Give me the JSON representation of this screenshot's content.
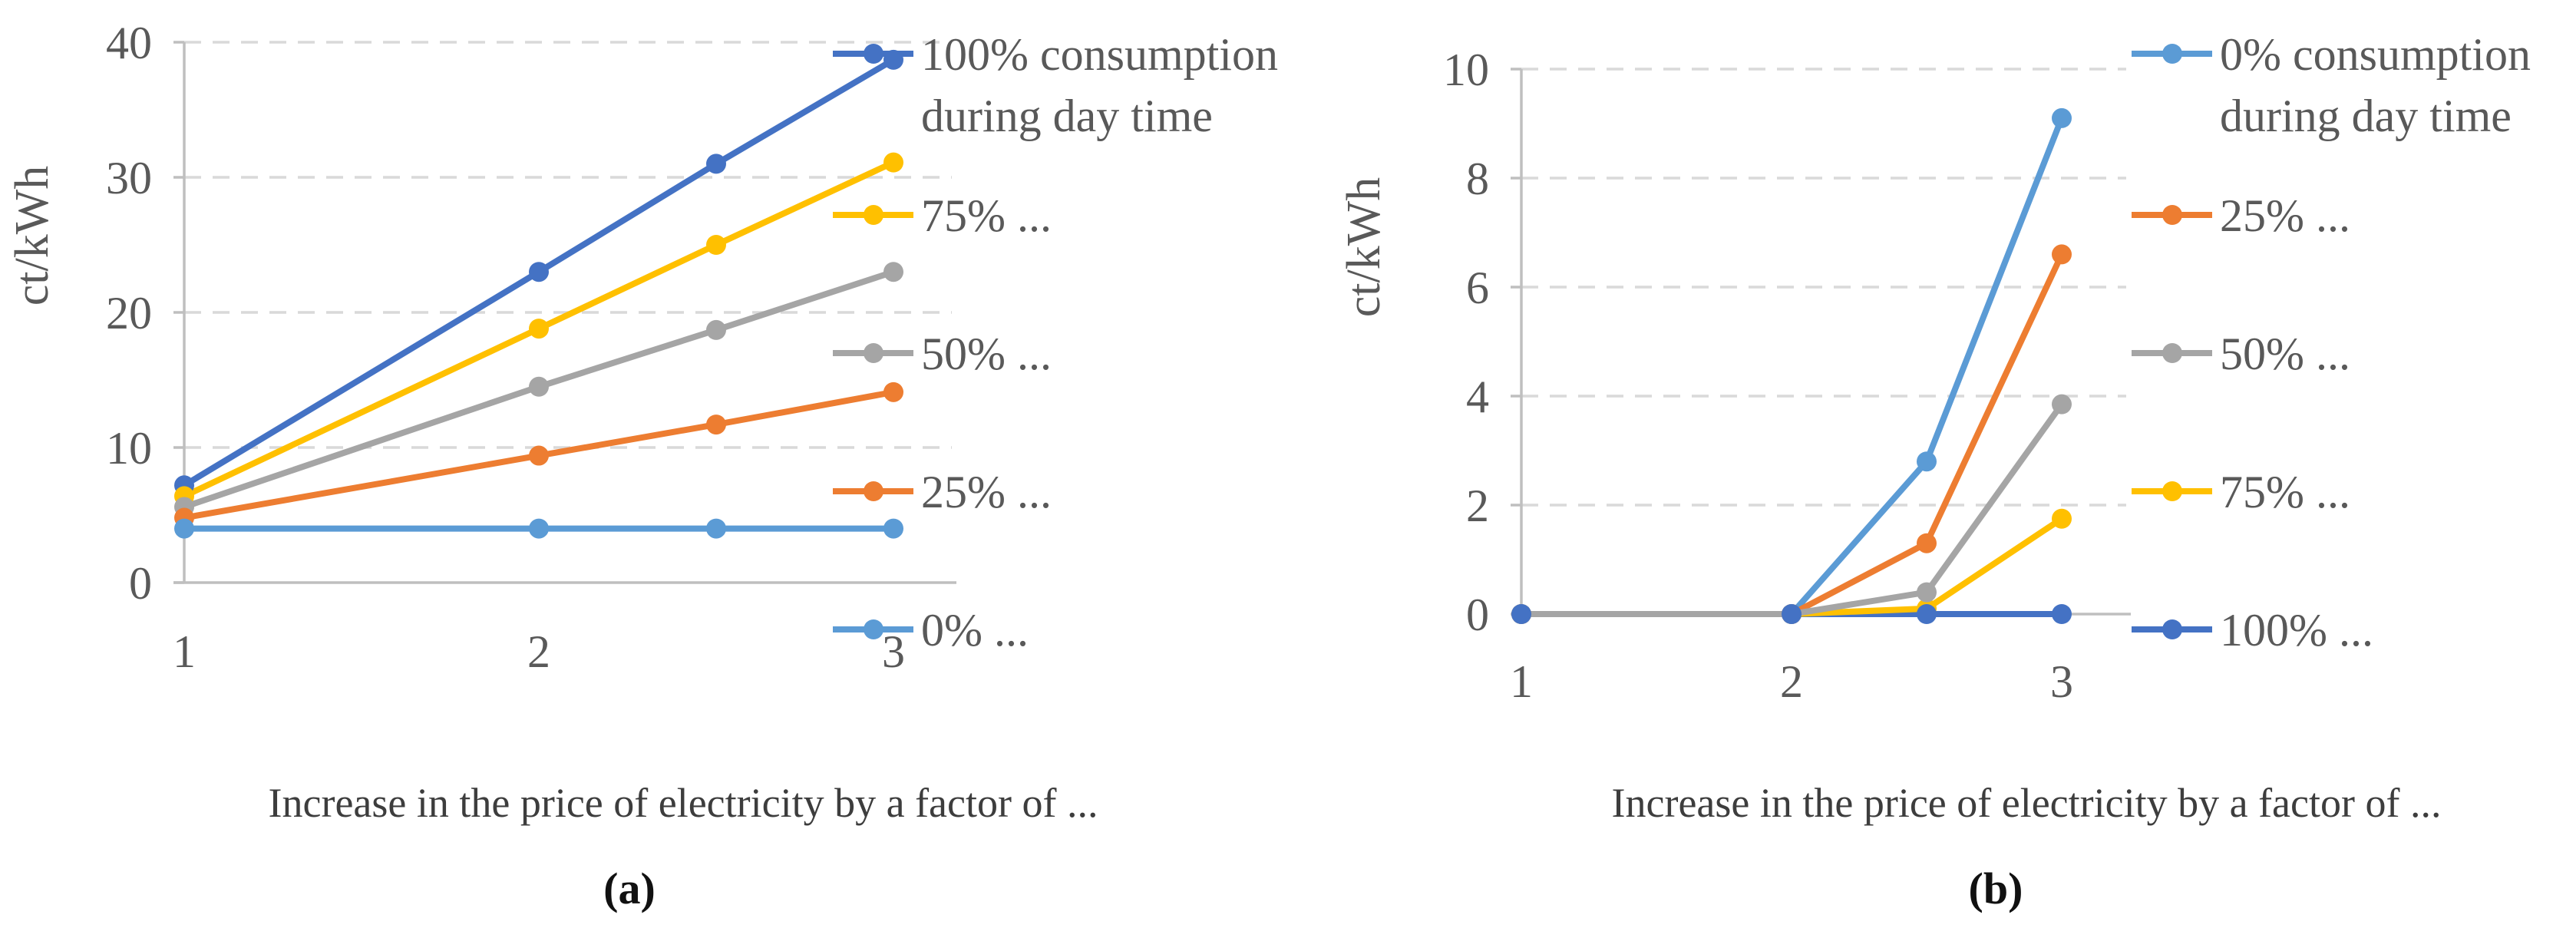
{
  "figure": {
    "description": "Two line charts comparing electricity cost (ct/kWh) versus increase in electricity price factor, for different shares of consumption during day time",
    "accent_colors": {
      "dark_blue": "#4472C4",
      "orange": "#ED7D31",
      "gray": "#A5A5A5",
      "yellow": "#FFC000",
      "light_blue": "#5B9BD5",
      "gridline": "#D9D9D9",
      "axis": "#BFBFBF",
      "text": "#595959"
    }
  },
  "chart_data": [
    {
      "type": "line",
      "panel_label": "(a)",
      "ylabel": "ct/kWh",
      "xlabel": "Increase in the price of electricity by a factor of ...",
      "x": [
        1,
        2,
        2.5,
        3
      ],
      "xticks": [
        "1",
        "2",
        "3"
      ],
      "yticks": [
        "40",
        "30",
        "20",
        "10",
        "0"
      ],
      "xlim": [
        1,
        3
      ],
      "ylim": [
        0,
        40
      ],
      "grid": "horizontal dashed",
      "legend_position": "right",
      "series": [
        {
          "name": "100% consumption during day time",
          "label_lines": [
            "100% consumption",
            "during day time"
          ],
          "color": "#4472C4",
          "values": [
            7.2,
            23,
            31,
            38.7
          ]
        },
        {
          "name": "75% ...",
          "color": "#FFC000",
          "values": [
            6.4,
            18.8,
            25,
            31.1
          ]
        },
        {
          "name": "50% ...",
          "color": "#A5A5A5",
          "values": [
            5.6,
            14.5,
            18.7,
            23
          ]
        },
        {
          "name": "25% ...",
          "color": "#ED7D31",
          "values": [
            4.8,
            9.4,
            11.7,
            14.1
          ]
        },
        {
          "name": "0% ...",
          "color": "#5B9BD5",
          "values": [
            4,
            4,
            4,
            4
          ]
        }
      ]
    },
    {
      "type": "line",
      "panel_label": "(b)",
      "ylabel": "ct/kWh",
      "xlabel": "Increase in the price of electricity by a factor of ...",
      "x": [
        1,
        2,
        2.5,
        3
      ],
      "xticks": [
        "1",
        "2",
        "3"
      ],
      "yticks": [
        "10",
        "8",
        "6",
        "4",
        "2",
        "0"
      ],
      "xlim": [
        1,
        3
      ],
      "ylim": [
        0,
        10
      ],
      "grid": "horizontal dashed",
      "legend_position": "right",
      "series": [
        {
          "name": "0% consumption during day time",
          "label_lines": [
            "0% consumption",
            "during day time"
          ],
          "color": "#5B9BD5",
          "values": [
            0,
            0,
            2.8,
            9.1
          ]
        },
        {
          "name": "25% ...",
          "color": "#ED7D31",
          "values": [
            0,
            0,
            1.3,
            6.6
          ]
        },
        {
          "name": "50% ...",
          "color": "#A5A5A5",
          "values": [
            0,
            0,
            0.4,
            3.85
          ]
        },
        {
          "name": "75% ...",
          "color": "#FFC000",
          "values": [
            0,
            0,
            0.1,
            1.75
          ]
        },
        {
          "name": "100% ...",
          "color": "#4472C4",
          "values": [
            0,
            0,
            0,
            0
          ]
        }
      ]
    }
  ]
}
